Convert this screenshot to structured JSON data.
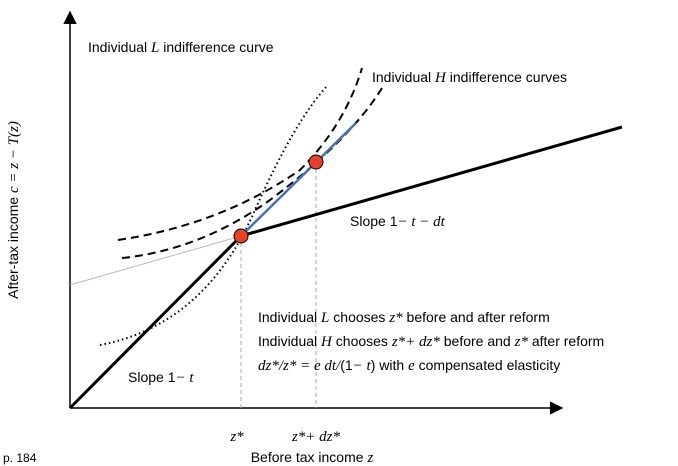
{
  "labels": {
    "l_curve": [
      {
        "text": "Individual "
      },
      {
        "text": "L",
        "math": true
      },
      {
        "text": " indifference curve"
      }
    ],
    "h_curves": [
      {
        "text": "Individual "
      },
      {
        "text": "H",
        "math": true
      },
      {
        "text": " indifference curves"
      }
    ],
    "slope_after": [
      {
        "text": "Slope 1"
      },
      {
        "text": "− t − dt",
        "math": true
      }
    ],
    "slope_before": [
      {
        "text": "Slope 1"
      },
      {
        "text": "− t",
        "math": true
      }
    ],
    "note_l": [
      {
        "text": "Individual "
      },
      {
        "text": "L",
        "math": true
      },
      {
        "text": " chooses "
      },
      {
        "text": "z*",
        "math": true
      },
      {
        "text": " before and after reform"
      }
    ],
    "note_h": [
      {
        "text": "Individual "
      },
      {
        "text": "H",
        "math": true
      },
      {
        "text": " chooses "
      },
      {
        "text": "z*+ dz*",
        "math": true
      },
      {
        "text": " before and "
      },
      {
        "text": "z*",
        "math": true
      },
      {
        "text": " after reform"
      }
    ],
    "note_e": [
      {
        "text": "dz*/z* = e dt/",
        "math": true
      },
      {
        "text": "(1"
      },
      {
        "text": "− t",
        "math": true
      },
      {
        "text": ") with "
      },
      {
        "text": "e",
        "math": true
      },
      {
        "text": " compensated elasticity"
      }
    ],
    "z_star": [
      {
        "text": "z*",
        "math": true
      }
    ],
    "z_star_dz": [
      {
        "text": "z*+ dz*",
        "math": true
      }
    ],
    "page": [
      {
        "text": "p. 184"
      }
    ],
    "x_axis": [
      {
        "text": "Before tax income "
      },
      {
        "text": "z",
        "math": true
      }
    ],
    "y_axis": [
      {
        "text": "After-tax income "
      },
      {
        "text": "c = z − T(z)",
        "math": true
      }
    ]
  }
}
